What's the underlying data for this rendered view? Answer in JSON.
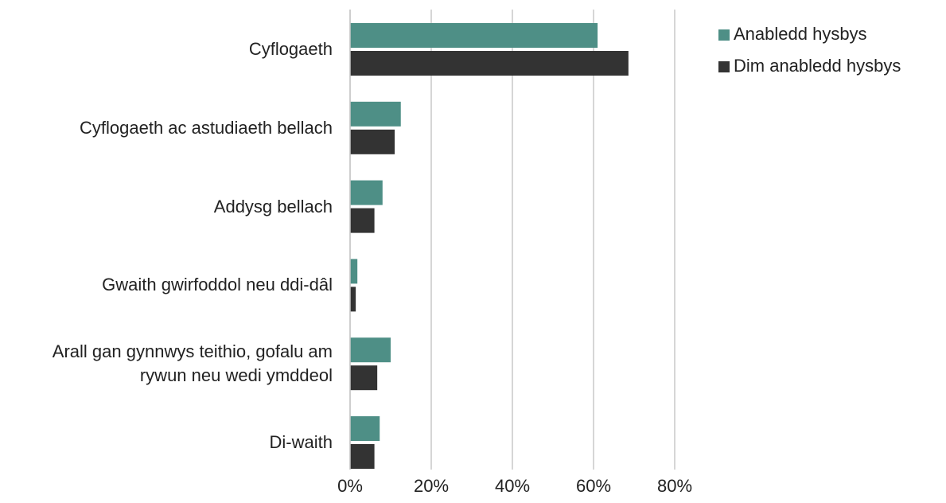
{
  "chart_data": {
    "type": "bar",
    "orientation": "horizontal",
    "categories": [
      "Cyflogaeth",
      "Cyflogaeth ac astudiaeth bellach",
      "Addysg bellach",
      "Gwaith gwirfoddol neu ddi-dâl",
      "Arall gan gynnwys teithio, gofalu am rywun neu wedi ymddeol",
      "Di-waith"
    ],
    "series": [
      {
        "name": "Anabledd hysbys",
        "color": "#4e8f86",
        "values": [
          61,
          12.5,
          8,
          1.8,
          10,
          7.3
        ]
      },
      {
        "name": "Dim anabledd hysbys",
        "color": "#333333",
        "values": [
          68.6,
          11,
          6,
          1.4,
          6.7,
          6
        ]
      }
    ],
    "xlim": [
      0,
      80
    ],
    "xticks": [
      {
        "value": 0,
        "label": "0%"
      },
      {
        "value": 20,
        "label": "20%"
      },
      {
        "value": 40,
        "label": "40%"
      },
      {
        "value": 60,
        "label": "60%"
      },
      {
        "value": 80,
        "label": "80%"
      }
    ],
    "grid": true,
    "legend": "top-right"
  }
}
